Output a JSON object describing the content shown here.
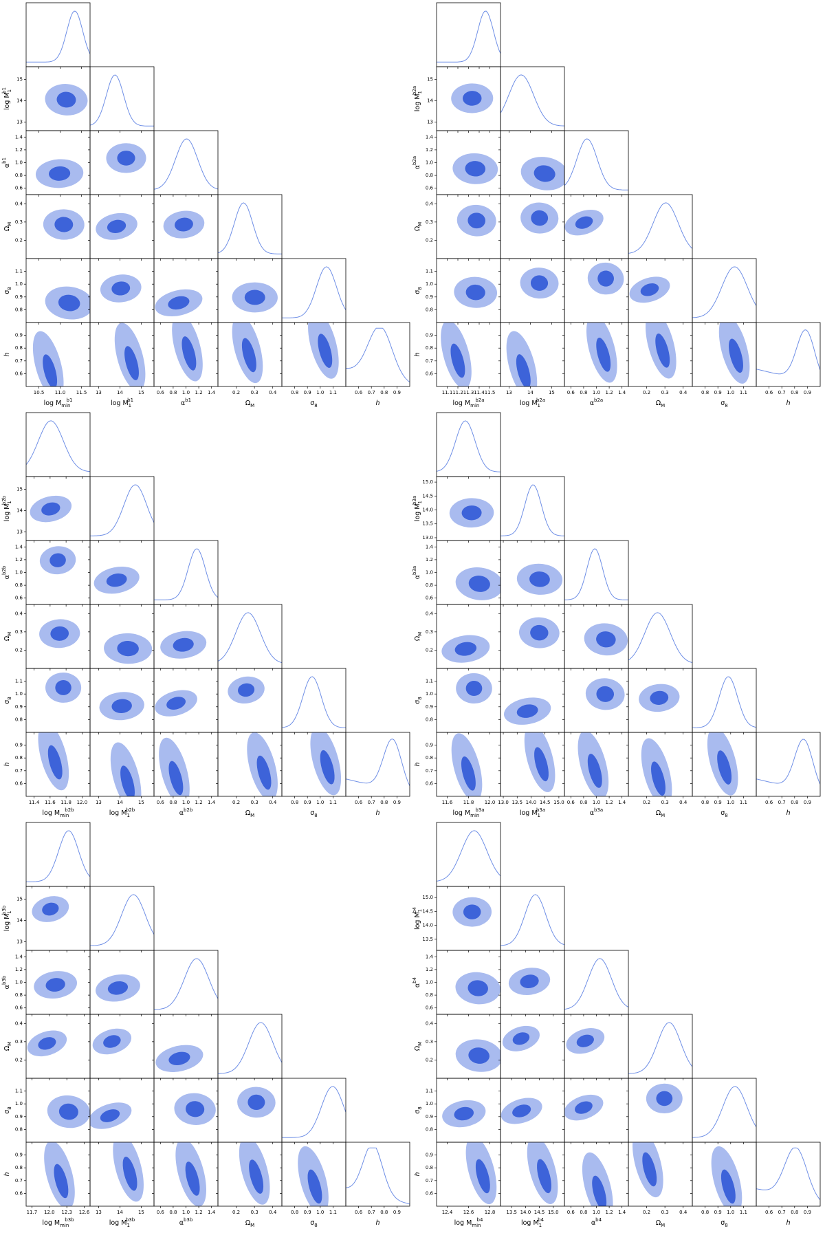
{
  "chart_data": [
    {
      "type": "corner",
      "parameters": [
        {
          "label": {
            "text": "log M",
            "sub": "min",
            "sup": "b1"
          },
          "lim": [
            10.2,
            11.7
          ],
          "ticks": [
            10.5,
            {
              "value": 11,
              "label": "11.0"
            },
            11.5
          ]
        },
        {
          "label": {
            "text": "log M",
            "sub": "1",
            "sup": "b1"
          },
          "lim": [
            12.6,
            15.6
          ],
          "ticks": [
            13,
            14,
            15
          ]
        },
        {
          "label": {
            "text": "α",
            "sup": "b1"
          },
          "lim": [
            0.5,
            1.5
          ],
          "ticks": [
            0.6,
            0.8,
            {
              "value": 1,
              "label": "1.0"
            },
            1.2,
            1.4
          ]
        },
        {
          "label": {
            "text": "Ω",
            "sub": "M"
          },
          "lim": [
            0.1,
            0.45
          ],
          "ticks": [
            0.2,
            0.3,
            0.4
          ]
        },
        {
          "label": {
            "text": "σ",
            "sub": "8"
          },
          "lim": [
            0.7,
            1.2
          ],
          "ticks": [
            0.8,
            0.9,
            {
              "value": 1,
              "label": "1.0"
            },
            1.1
          ]
        },
        {
          "label": {
            "text": "h"
          },
          "lim": [
            0.5,
            1.0
          ],
          "ticks": [
            0.6,
            0.7,
            0.8,
            0.9
          ]
        }
      ]
    },
    {
      "type": "corner",
      "parameters": [
        {
          "label": {
            "text": "log M",
            "sub": "min",
            "sup": "b2a"
          },
          "lim": [
            11.0,
            11.6
          ],
          "ticks": [
            11.1,
            11.2,
            11.3,
            11.4,
            11.5
          ]
        },
        {
          "label": {
            "text": "log M",
            "sub": "1",
            "sup": "b2a"
          },
          "lim": [
            12.6,
            15.6
          ],
          "ticks": [
            13,
            14,
            15
          ]
        },
        {
          "label": {
            "text": "α",
            "sup": "b2a"
          },
          "lim": [
            0.5,
            1.5
          ],
          "ticks": [
            0.6,
            0.8,
            {
              "value": 1,
              "label": "1.0"
            },
            1.2,
            1.4
          ]
        },
        {
          "label": {
            "text": "Ω",
            "sub": "M"
          },
          "lim": [
            0.1,
            0.45
          ],
          "ticks": [
            0.2,
            0.3,
            0.4
          ]
        },
        {
          "label": {
            "text": "σ",
            "sub": "8"
          },
          "lim": [
            0.7,
            1.2
          ],
          "ticks": [
            0.8,
            0.9,
            {
              "value": 1,
              "label": "1.0"
            },
            1.1
          ]
        },
        {
          "label": {
            "text": "h"
          },
          "lim": [
            0.5,
            1.0
          ],
          "ticks": [
            0.6,
            0.7,
            0.8,
            0.9
          ]
        }
      ]
    },
    {
      "type": "corner",
      "parameters": [
        {
          "label": {
            "text": "log M",
            "sub": "min",
            "sup": "b2b"
          },
          "lim": [
            11.3,
            12.1
          ],
          "ticks": [
            11.4,
            11.6,
            11.8,
            {
              "value": 12,
              "label": "12.0"
            }
          ]
        },
        {
          "label": {
            "text": "log M",
            "sub": "1",
            "sup": "b2b"
          },
          "lim": [
            12.6,
            15.6
          ],
          "ticks": [
            13,
            14,
            15
          ]
        },
        {
          "label": {
            "text": "α",
            "sup": "b2b"
          },
          "lim": [
            0.5,
            1.5
          ],
          "ticks": [
            0.6,
            0.8,
            {
              "value": 1,
              "label": "1.0"
            },
            1.2,
            1.4
          ]
        },
        {
          "label": {
            "text": "Ω",
            "sub": "M"
          },
          "lim": [
            0.1,
            0.45
          ],
          "ticks": [
            0.2,
            0.3,
            0.4
          ]
        },
        {
          "label": {
            "text": "σ",
            "sub": "8"
          },
          "lim": [
            0.7,
            1.2
          ],
          "ticks": [
            0.8,
            0.9,
            {
              "value": 1,
              "label": "1.0"
            },
            1.1
          ]
        },
        {
          "label": {
            "text": "h"
          },
          "lim": [
            0.5,
            1.0
          ],
          "ticks": [
            0.6,
            0.7,
            0.8,
            0.9
          ]
        }
      ]
    },
    {
      "type": "corner",
      "parameters": [
        {
          "label": {
            "text": "log M",
            "sub": "min",
            "sup": "b3a"
          },
          "lim": [
            11.5,
            12.1
          ],
          "ticks": [
            11.6,
            11.8,
            {
              "value": 12,
              "label": "12.0"
            }
          ]
        },
        {
          "label": {
            "text": "log M",
            "sub": "1",
            "sup": "b3a"
          },
          "lim": [
            12.9,
            15.2
          ],
          "ticks": [
            {
              "value": 13,
              "label": "13.0"
            },
            13.5,
            {
              "value": 14,
              "label": "14.0"
            },
            14.5,
            {
              "value": 15,
              "label": "15.0"
            }
          ]
        },
        {
          "label": {
            "text": "α",
            "sup": "b3a"
          },
          "lim": [
            0.5,
            1.5
          ],
          "ticks": [
            0.6,
            0.8,
            {
              "value": 1,
              "label": "1.0"
            },
            1.2,
            1.4
          ]
        },
        {
          "label": {
            "text": "Ω",
            "sub": "M"
          },
          "lim": [
            0.1,
            0.45
          ],
          "ticks": [
            0.2,
            0.3,
            0.4
          ]
        },
        {
          "label": {
            "text": "σ",
            "sub": "8"
          },
          "lim": [
            0.7,
            1.2
          ],
          "ticks": [
            0.8,
            0.9,
            {
              "value": 1,
              "label": "1.0"
            },
            1.1
          ]
        },
        {
          "label": {
            "text": "h"
          },
          "lim": [
            0.5,
            1.0
          ],
          "ticks": [
            0.6,
            0.7,
            0.8,
            0.9
          ]
        }
      ]
    },
    {
      "type": "corner",
      "parameters": [
        {
          "label": {
            "text": "log M",
            "sub": "min",
            "sup": "b3b"
          },
          "lim": [
            11.6,
            12.7
          ],
          "ticks": [
            11.7,
            {
              "value": 12,
              "label": "12.0"
            },
            12.3,
            12.6
          ]
        },
        {
          "label": {
            "text": "log M",
            "sub": "1",
            "sup": "b3b"
          },
          "lim": [
            12.6,
            15.6
          ],
          "ticks": [
            13,
            14,
            15
          ]
        },
        {
          "label": {
            "text": "α",
            "sup": "b3b"
          },
          "lim": [
            0.5,
            1.5
          ],
          "ticks": [
            0.6,
            0.8,
            {
              "value": 1,
              "label": "1.0"
            },
            1.2,
            1.4
          ]
        },
        {
          "label": {
            "text": "Ω",
            "sub": "M"
          },
          "lim": [
            0.1,
            0.45
          ],
          "ticks": [
            0.2,
            0.3,
            0.4
          ]
        },
        {
          "label": {
            "text": "σ",
            "sub": "8"
          },
          "lim": [
            0.7,
            1.2
          ],
          "ticks": [
            0.8,
            0.9,
            {
              "value": 1,
              "label": "1.0"
            },
            1.1
          ]
        },
        {
          "label": {
            "text": "h"
          },
          "lim": [
            0.5,
            1.0
          ],
          "ticks": [
            0.6,
            0.7,
            0.8,
            0.9
          ]
        }
      ]
    },
    {
      "type": "corner",
      "parameters": [
        {
          "label": {
            "text": "log M",
            "sub": "min",
            "sup": "b4"
          },
          "lim": [
            12.3,
            12.9
          ],
          "ticks": [
            12.4,
            12.6,
            12.8
          ]
        },
        {
          "label": {
            "text": "log M",
            "sub": "1",
            "sup": "b4"
          },
          "lim": [
            13.1,
            15.4
          ],
          "ticks": [
            13.5,
            {
              "value": 14,
              "label": "14.0"
            },
            14.5,
            {
              "value": 15,
              "label": "15.0"
            }
          ]
        },
        {
          "label": {
            "text": "α",
            "sup": "b4"
          },
          "lim": [
            0.5,
            1.5
          ],
          "ticks": [
            0.6,
            0.8,
            {
              "value": 1,
              "label": "1.0"
            },
            1.2,
            1.4
          ]
        },
        {
          "label": {
            "text": "Ω",
            "sub": "M"
          },
          "lim": [
            0.1,
            0.45
          ],
          "ticks": [
            0.2,
            0.3,
            0.4
          ]
        },
        {
          "label": {
            "text": "σ",
            "sub": "8"
          },
          "lim": [
            0.7,
            1.2
          ],
          "ticks": [
            0.8,
            0.9,
            {
              "value": 1,
              "label": "1.0"
            },
            1.1
          ]
        },
        {
          "label": {
            "text": "h"
          },
          "lim": [
            0.5,
            1.0
          ],
          "ticks": [
            0.6,
            0.7,
            0.8,
            0.9
          ]
        }
      ]
    }
  ]
}
